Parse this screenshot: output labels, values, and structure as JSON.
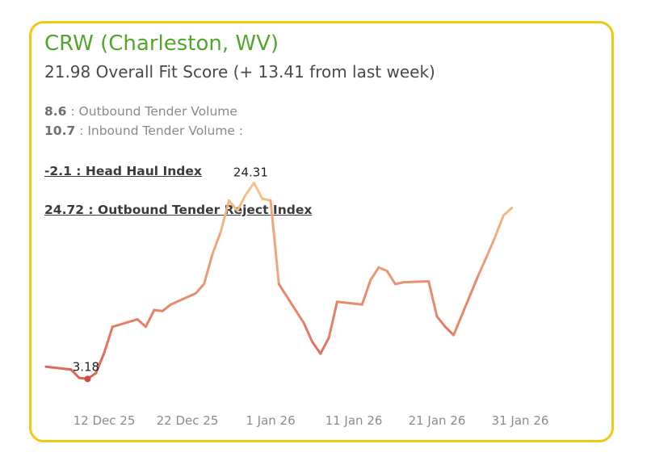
{
  "header": {
    "title": "CRW (Charleston, WV)",
    "subtitle": "21.98 Overall Fit Score (+ 13.41 from last week)"
  },
  "metrics": [
    {
      "value": "8.6",
      "label": " : Outbound Tender Volume"
    },
    {
      "value": "10.7",
      "label": " : Inbound Tender Volume :"
    }
  ],
  "links": [
    {
      "text": "-2.1 : Head Haul Index"
    },
    {
      "text": "24.72 : Outbound Tender Reject Index"
    }
  ],
  "colors": {
    "border": "#f2c811",
    "title": "#53a62c",
    "line_low": "#d9534f",
    "line_high": "#f7c98b"
  },
  "chart_data": {
    "type": "line",
    "xlabel": "",
    "ylabel": "",
    "x_tick_labels": [
      "12 Dec 25",
      "22 Dec 25",
      "1 Jan 26",
      "11 Jan 26",
      "21 Jan 26",
      "31 Jan 26"
    ],
    "x_tick_dates": [
      "2025-12-12",
      "2025-12-22",
      "2026-01-01",
      "2026-01-11",
      "2026-01-21",
      "2026-01-31"
    ],
    "ylim": [
      0,
      30
    ],
    "grid": false,
    "legend": "none",
    "annotations": [
      {
        "text": "3.18",
        "x": "2025-12-10",
        "y": 3.18
      },
      {
        "text": "24.31",
        "x": "2025-12-30",
        "y": 24.31
      }
    ],
    "series": [
      {
        "x": [
          "2025-12-05",
          "2025-12-08",
          "2025-12-09",
          "2025-12-10",
          "2025-12-11",
          "2025-12-12",
          "2025-12-13",
          "2025-12-16",
          "2025-12-17",
          "2025-12-18",
          "2025-12-19",
          "2025-12-20",
          "2025-12-21",
          "2025-12-23",
          "2025-12-24",
          "2025-12-25",
          "2025-12-26",
          "2025-12-27",
          "2025-12-28",
          "2025-12-29",
          "2025-12-30",
          "2025-12-31",
          "2026-01-01",
          "2026-01-02",
          "2026-01-05",
          "2026-01-06",
          "2026-01-07",
          "2026-01-08",
          "2026-01-09",
          "2026-01-12",
          "2026-01-13",
          "2026-01-14",
          "2026-01-15",
          "2026-01-16",
          "2026-01-17",
          "2026-01-20",
          "2026-01-21",
          "2026-01-22",
          "2026-01-23",
          "2026-01-26",
          "2026-01-27",
          "2026-01-28",
          "2026-01-29",
          "2026-01-30"
        ],
        "values": [
          4.5,
          4.2,
          3.3,
          3.2,
          3.8,
          6.0,
          8.8,
          9.6,
          8.8,
          10.6,
          10.5,
          11.2,
          11.6,
          12.4,
          13.4,
          16.6,
          19.0,
          22.4,
          21.3,
          23.0,
          24.3,
          22.6,
          22.4,
          13.4,
          9.2,
          7.2,
          5.9,
          7.6,
          11.5,
          11.2,
          13.8,
          15.2,
          14.8,
          13.4,
          13.6,
          13.7,
          9.9,
          8.8,
          7.9,
          14.4,
          16.4,
          18.5,
          20.8,
          21.6
        ]
      }
    ]
  }
}
